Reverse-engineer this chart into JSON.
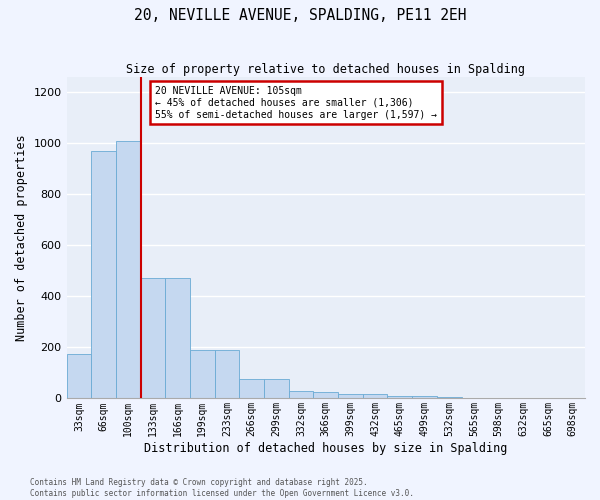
{
  "title": "20, NEVILLE AVENUE, SPALDING, PE11 2EH",
  "subtitle": "Size of property relative to detached houses in Spalding",
  "xlabel": "Distribution of detached houses by size in Spalding",
  "ylabel": "Number of detached properties",
  "categories": [
    "33sqm",
    "66sqm",
    "100sqm",
    "133sqm",
    "166sqm",
    "199sqm",
    "233sqm",
    "266sqm",
    "299sqm",
    "332sqm",
    "366sqm",
    "399sqm",
    "432sqm",
    "465sqm",
    "499sqm",
    "532sqm",
    "565sqm",
    "598sqm",
    "632sqm",
    "665sqm",
    "698sqm"
  ],
  "values": [
    175,
    970,
    1010,
    470,
    470,
    190,
    190,
    75,
    75,
    28,
    25,
    18,
    18,
    10,
    10,
    5,
    0,
    0,
    0,
    0,
    0
  ],
  "bar_color": "#c5d8f0",
  "bar_edge_color": "#6aaad4",
  "fig_background": "#f0f4ff",
  "plot_background": "#e8eef8",
  "grid_color": "#ffffff",
  "vline_x": 2.5,
  "vline_color": "#cc0000",
  "annotation_text": "20 NEVILLE AVENUE: 105sqm\n← 45% of detached houses are smaller (1,306)\n55% of semi-detached houses are larger (1,597) →",
  "annotation_box_color": "#cc0000",
  "annotation_box_fill": "#ffffff",
  "ylim": [
    0,
    1260
  ],
  "yticks": [
    0,
    200,
    400,
    600,
    800,
    1000,
    1200
  ],
  "footer_line1": "Contains HM Land Registry data © Crown copyright and database right 2025.",
  "footer_line2": "Contains public sector information licensed under the Open Government Licence v3.0."
}
